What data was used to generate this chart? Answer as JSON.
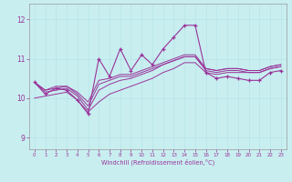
{
  "xlabel": "Windchill (Refroidissement éolien,°C)",
  "background_color": "#c8eef0",
  "line_color": "#993399",
  "grid_color": "#b8e4e8",
  "x_ticks": [
    0,
    1,
    2,
    3,
    4,
    5,
    6,
    7,
    8,
    9,
    10,
    11,
    12,
    13,
    14,
    15,
    16,
    17,
    18,
    19,
    20,
    21,
    22,
    23
  ],
  "y_ticks": [
    9,
    10,
    11,
    12
  ],
  "ylim": [
    8.7,
    12.4
  ],
  "xlim": [
    -0.5,
    23.5
  ],
  "jagged_series": [
    10.4,
    10.1,
    10.25,
    10.2,
    9.95,
    9.6,
    11.0,
    10.55,
    11.25,
    10.7,
    11.1,
    10.85,
    11.25,
    11.55,
    11.85,
    11.85,
    10.65,
    10.5,
    10.55,
    10.5,
    10.45,
    10.45,
    10.65,
    10.7
  ],
  "smooth_series": [
    [
      10.4,
      10.2,
      10.25,
      10.3,
      10.1,
      9.8,
      10.35,
      10.45,
      10.55,
      10.55,
      10.65,
      10.75,
      10.85,
      10.95,
      11.05,
      11.05,
      10.75,
      10.7,
      10.75,
      10.75,
      10.7,
      10.7,
      10.8,
      10.85
    ],
    [
      10.4,
      10.2,
      10.3,
      10.3,
      10.15,
      9.9,
      10.45,
      10.5,
      10.6,
      10.6,
      10.7,
      10.8,
      10.9,
      11.0,
      11.1,
      11.1,
      10.75,
      10.7,
      10.75,
      10.75,
      10.7,
      10.7,
      10.8,
      10.85
    ],
    [
      10.4,
      10.15,
      10.2,
      10.25,
      10.05,
      9.7,
      10.2,
      10.35,
      10.45,
      10.5,
      10.6,
      10.7,
      10.85,
      10.95,
      11.05,
      11.05,
      10.7,
      10.65,
      10.7,
      10.7,
      10.65,
      10.65,
      10.75,
      10.8
    ],
    [
      10.0,
      10.05,
      10.1,
      10.15,
      9.95,
      9.65,
      9.9,
      10.1,
      10.2,
      10.3,
      10.4,
      10.5,
      10.65,
      10.75,
      10.9,
      10.9,
      10.65,
      10.6,
      10.65,
      10.65,
      10.65,
      10.65,
      10.75,
      10.8
    ]
  ]
}
